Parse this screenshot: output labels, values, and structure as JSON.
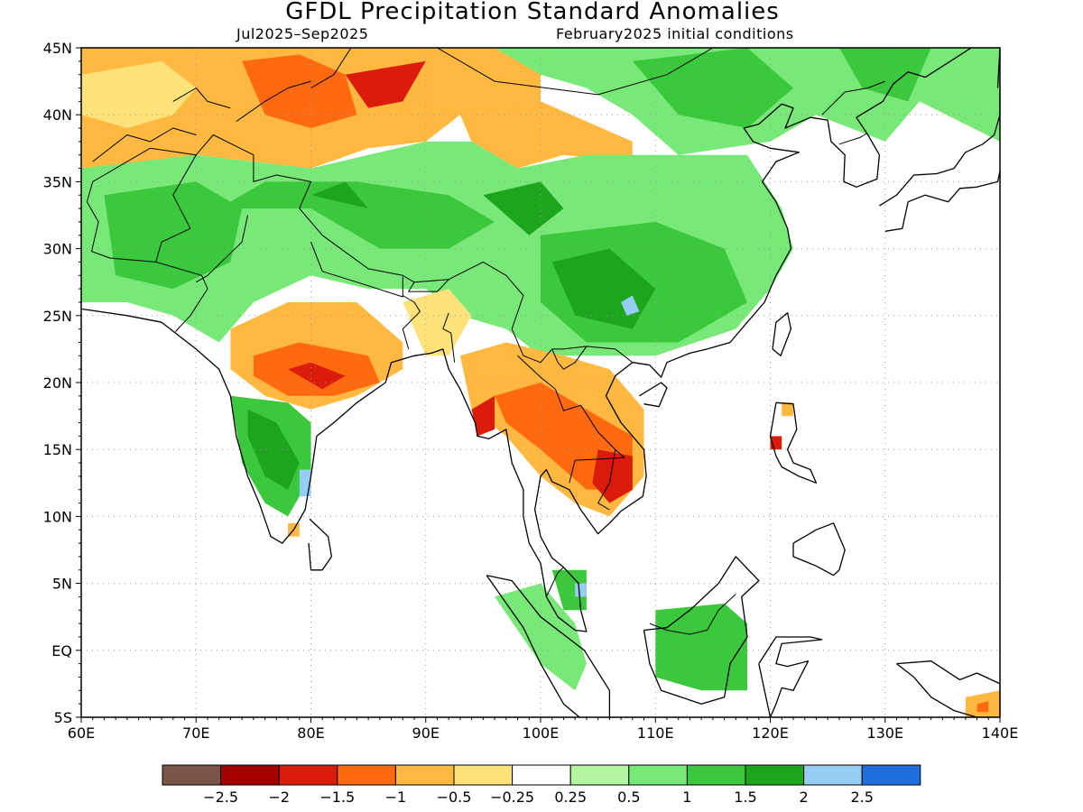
{
  "title": "GFDL Precipitation Standard Anomalies",
  "subtitle_left": "Jul2025–Sep2025",
  "subtitle_right": "February2025 initial conditions",
  "lon_labels": [
    "60E",
    "70E",
    "80E",
    "90E",
    "100E",
    "110E",
    "120E",
    "130E",
    "140E"
  ],
  "lat_labels": [
    "45N",
    "40N",
    "35N",
    "30N",
    "25N",
    "20N",
    "15N",
    "10N",
    "5N",
    "EQ",
    "5S"
  ],
  "colorbar": {
    "colors": [
      "#7a5548",
      "#a50000",
      "#dc1c0a",
      "#ff6a10",
      "#ffb840",
      "#ffe27a",
      "#ffffff",
      "#b4f5a4",
      "#78e878",
      "#3cc83c",
      "#1ea51e",
      "#96cdf5",
      "#1e6edc"
    ],
    "labels": [
      "−2.5",
      "−2",
      "−1.5",
      "−1",
      "−0.5",
      "−0.25",
      "0.25",
      "0.5",
      "1",
      "1.5",
      "2",
      "2.5"
    ]
  },
  "palette": {
    "brown": "#7a5548",
    "darkred": "#a50000",
    "red": "#dc1c0a",
    "orange": "#ff6a10",
    "lightorange": "#ffb840",
    "yellow": "#ffe27a",
    "white": "#ffffff",
    "palegreen": "#b4f5a4",
    "lightgreen": "#78e878",
    "green": "#3cc83c",
    "darkgreen": "#1ea51e",
    "lightblue": "#96cdf5",
    "blue": "#1e6edc"
  }
}
